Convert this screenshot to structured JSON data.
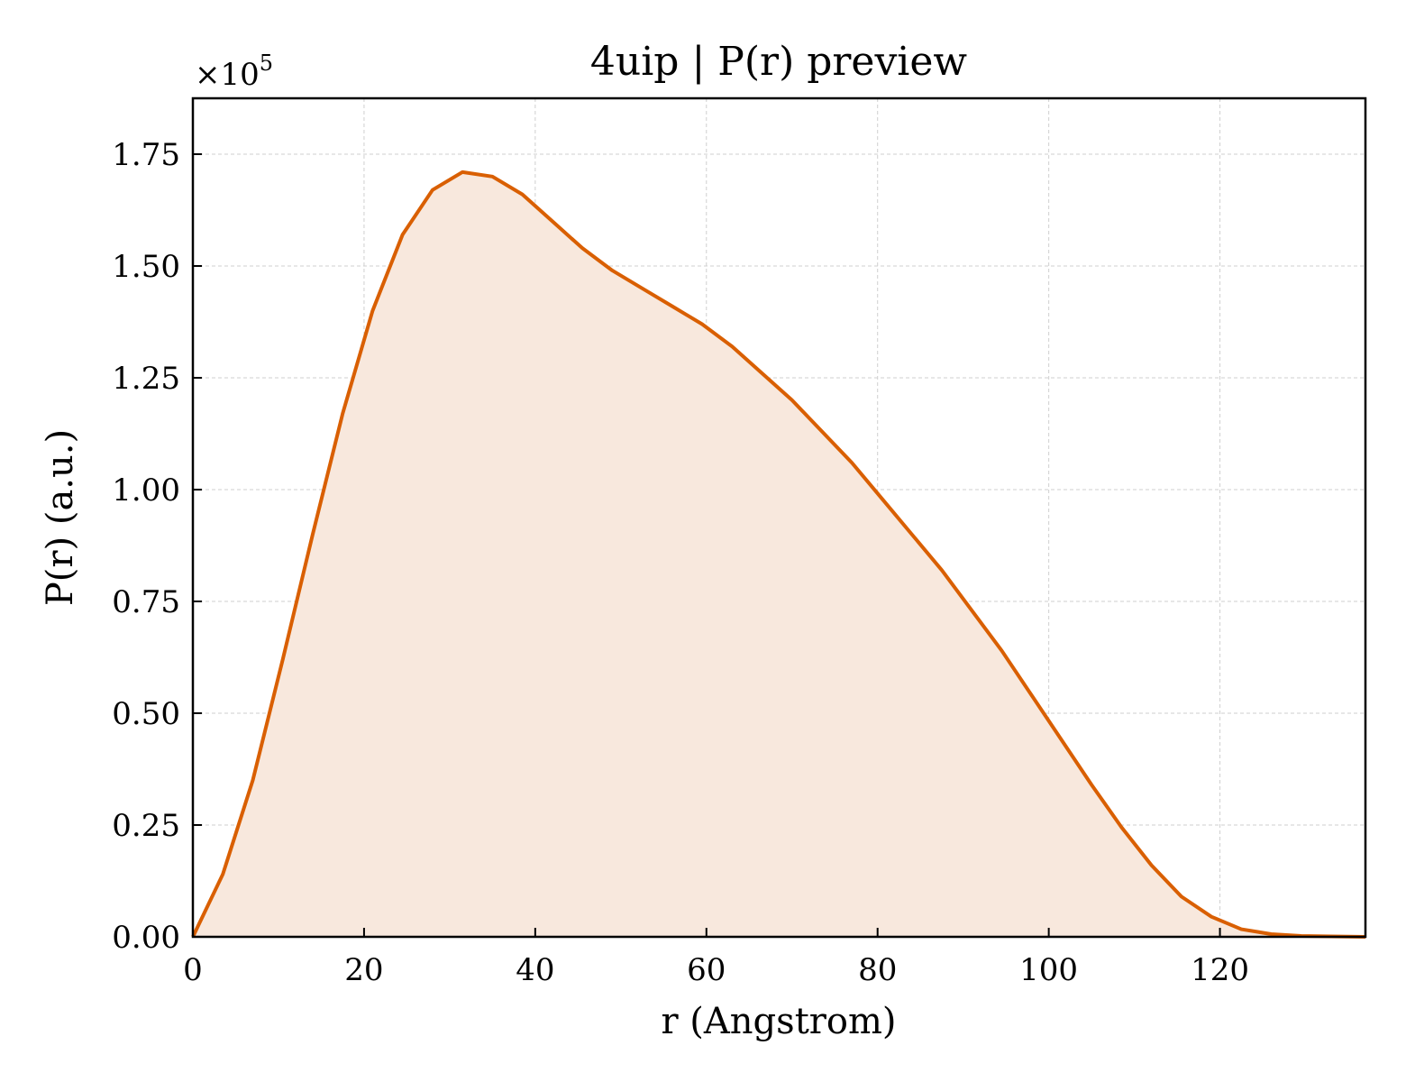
{
  "chart_data": {
    "type": "area",
    "title": "4uip | P(r) preview",
    "xlabel": "r (Angstrom)",
    "ylabel": "P(r) (a.u.)",
    "y_multiplier_label": "×10",
    "y_multiplier_exponent": "5",
    "xlim": [
      0,
      137
    ],
    "ylim": [
      0,
      1.875
    ],
    "x_ticks": [
      0,
      20,
      40,
      60,
      80,
      100,
      120
    ],
    "x_tick_labels": [
      "0",
      "20",
      "40",
      "60",
      "80",
      "100",
      "120"
    ],
    "y_ticks": [
      0,
      0.25,
      0.5,
      0.75,
      1.0,
      1.25,
      1.5,
      1.75
    ],
    "y_tick_labels": [
      "0.00",
      "0.25",
      "0.50",
      "0.75",
      "1.00",
      "1.25",
      "1.50",
      "1.75"
    ],
    "grid": true,
    "legend": "none",
    "colors": {
      "line": "#d95f02",
      "fill": "#f8e8dd"
    },
    "series": [
      {
        "x": [
          0,
          3.5,
          7,
          10.5,
          14,
          17.5,
          21,
          24.5,
          28,
          31.5,
          35,
          38.5,
          42,
          45.5,
          49,
          52.5,
          56,
          59.5,
          63,
          66.5,
          70,
          73.5,
          77,
          80.5,
          84,
          87.5,
          91,
          94.5,
          98,
          101.5,
          105,
          108.5,
          112,
          115.5,
          119,
          122.5,
          126,
          129.5,
          133,
          137
        ],
        "y": [
          0.0,
          0.14,
          0.35,
          0.62,
          0.9,
          1.17,
          1.4,
          1.57,
          1.67,
          1.71,
          1.7,
          1.66,
          1.6,
          1.54,
          1.49,
          1.45,
          1.41,
          1.37,
          1.32,
          1.26,
          1.2,
          1.13,
          1.06,
          0.98,
          0.9,
          0.82,
          0.73,
          0.64,
          0.54,
          0.44,
          0.34,
          0.245,
          0.16,
          0.09,
          0.045,
          0.017,
          0.006,
          0.002,
          0.001,
          0.0
        ]
      }
    ]
  }
}
